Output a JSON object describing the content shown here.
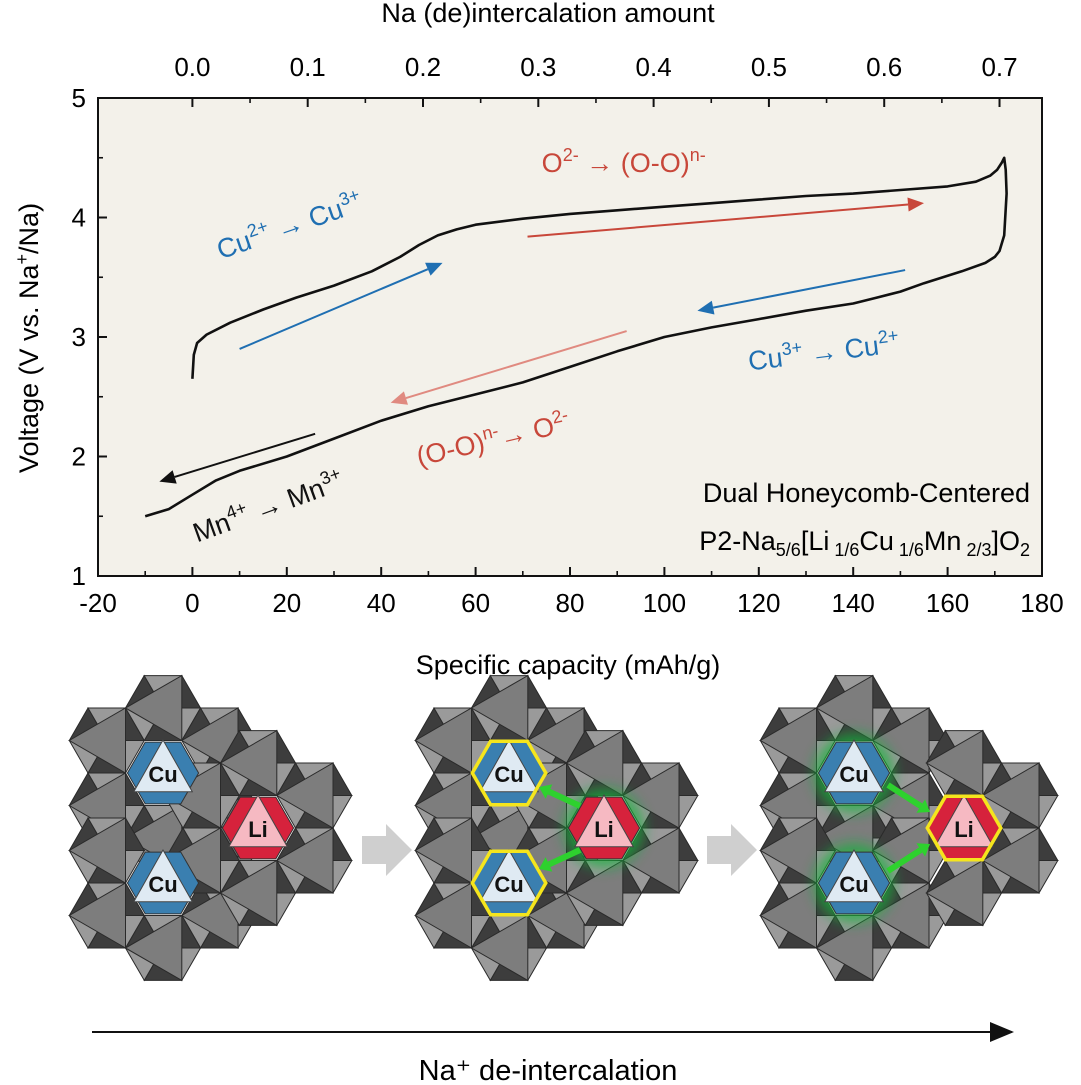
{
  "chart_data": {
    "type": "line",
    "top_axis_title": "Na (de)intercalation amount",
    "top_ticks": [
      "0.0",
      "0.1",
      "0.2",
      "0.3",
      "0.4",
      "0.5",
      "0.6",
      "0.7"
    ],
    "xlabel": "Specific capacity (mAh/g)",
    "ylabel": "Voltage (V vs. Na",
    "ylabel_sup": "+",
    "ylabel_tail": "/Na)",
    "xlim": [
      -20,
      180
    ],
    "ylim": [
      1,
      5
    ],
    "x_ticks": [
      -20,
      0,
      20,
      40,
      60,
      80,
      100,
      120,
      140,
      160,
      180
    ],
    "y_ticks": [
      1,
      2,
      3,
      4,
      5
    ],
    "plot_background": "#f3f1ea",
    "series": [
      {
        "color": "#111111",
        "x": [
          0.0,
          0.3,
          1.0,
          3.0,
          8.0,
          15.0,
          22.0,
          30.0,
          38.0,
          44.0,
          48.0,
          52.0,
          56.0,
          60.0,
          70.0,
          80.0,
          90.0,
          100.0,
          110.0,
          120.0,
          130.0,
          140.0,
          150.0,
          160.0,
          166.0,
          169.0,
          170.5,
          171.5,
          172.0,
          172.3,
          172.5,
          172.0,
          171.0,
          170.0,
          168.0,
          163.0,
          155.0,
          150.0,
          145.0,
          140.0,
          130.0,
          120.0,
          110.0,
          100.0,
          90.0,
          80.0,
          70.0,
          60.0,
          50.0,
          40.0,
          30.0,
          20.0,
          10.0,
          5.0,
          0.0,
          -5.0,
          -10.0
        ],
        "y": [
          2.65,
          2.85,
          2.95,
          3.02,
          3.12,
          3.23,
          3.33,
          3.43,
          3.55,
          3.67,
          3.77,
          3.85,
          3.9,
          3.94,
          3.99,
          4.03,
          4.06,
          4.09,
          4.12,
          4.15,
          4.18,
          4.2,
          4.23,
          4.26,
          4.3,
          4.35,
          4.4,
          4.46,
          4.5,
          4.4,
          4.2,
          3.85,
          3.72,
          3.67,
          3.62,
          3.55,
          3.45,
          3.38,
          3.33,
          3.28,
          3.22,
          3.15,
          3.08,
          3.0,
          2.88,
          2.75,
          2.62,
          2.52,
          2.42,
          2.3,
          2.15,
          2.0,
          1.88,
          1.8,
          1.68,
          1.56,
          1.5
        ]
      }
    ],
    "legend_lines": [
      "Dual Honeycomb-Centered",
      "P2-Na"
    ],
    "formula": {
      "t1": "P2-Na",
      "s1": "5/6",
      "t2": "[Li",
      "s2": " 1/6",
      "t3": "Cu",
      "s3": " 1/6",
      "t4": "Mn",
      "s4": " 2/3",
      "t5": "]O",
      "s5": "2"
    },
    "annotations": [
      {
        "id": "cu23",
        "base1": "Cu",
        "sup1": "2+",
        "arrow": " → ",
        "base2": "Cu",
        "sup2": "3+",
        "color": "#1f6fb2",
        "x": 6,
        "y": 3.65,
        "rotate": -19
      },
      {
        "id": "ooch",
        "base1": "O",
        "sup1": "2-",
        "arrow": " → ",
        "base2": "(O-O)",
        "sup2": "n-",
        "color": "#c8473a",
        "x": 74,
        "y": 4.38,
        "rotate": 0
      },
      {
        "id": "cu32",
        "base1": "Cu",
        "sup1": "3+",
        "arrow": " → ",
        "base2": "Cu",
        "sup2": "2+",
        "color": "#1f6fb2",
        "x": 118,
        "y": 2.72,
        "rotate": -7
      },
      {
        "id": "ood",
        "base1": "(O-O)",
        "sup1": "n-",
        "arrow": "→ ",
        "base2": "O",
        "sup2": "2-",
        "color": "#c8473a",
        "x": 48,
        "y": 1.92,
        "rotate": -13
      },
      {
        "id": "mn",
        "base1": "Mn",
        "sup1": "4+",
        "arrow": " → ",
        "base2": "Mn",
        "sup2": "3+",
        "color": "#111111",
        "x": 1,
        "y": 1.28,
        "rotate": -20
      }
    ],
    "arrows": [
      {
        "color": "#1f6fb2",
        "x1": 10,
        "y1": 2.9,
        "x2": 53,
        "y2": 3.62
      },
      {
        "color": "#c8473a",
        "x1": 71,
        "y1": 3.84,
        "x2": 155,
        "y2": 4.12
      },
      {
        "color": "#1f6fb2",
        "x1": 151,
        "y1": 3.56,
        "x2": 107,
        "y2": 3.22
      },
      {
        "color": "#e08a80",
        "x1": 92,
        "y1": 3.05,
        "x2": 42,
        "y2": 2.45
      },
      {
        "color": "#111111",
        "x1": 26,
        "y1": 2.19,
        "x2": -7,
        "y2": 1.79
      }
    ]
  },
  "diagram": {
    "panels": [
      {
        "labels": [
          "Cu",
          "Li",
          "Cu"
        ],
        "state": "initial"
      },
      {
        "labels": [
          "Cu",
          "Li",
          "Cu"
        ],
        "state": "li-glow"
      },
      {
        "labels": [
          "Cu",
          "Li",
          "Cu"
        ],
        "state": "cu-glow"
      }
    ],
    "bottom_label": "Na⁺ de-intercalation",
    "colors": {
      "cu": "#3a7fb0",
      "li": "#d6223c",
      "octa_light": "#9a9a9a",
      "octa_dark": "#3d3d3d",
      "highlight": "#f5e51d",
      "glow": "#18b43b",
      "arrow_green": "#2ed12e",
      "step_arrow": "#cfcfcf"
    }
  }
}
